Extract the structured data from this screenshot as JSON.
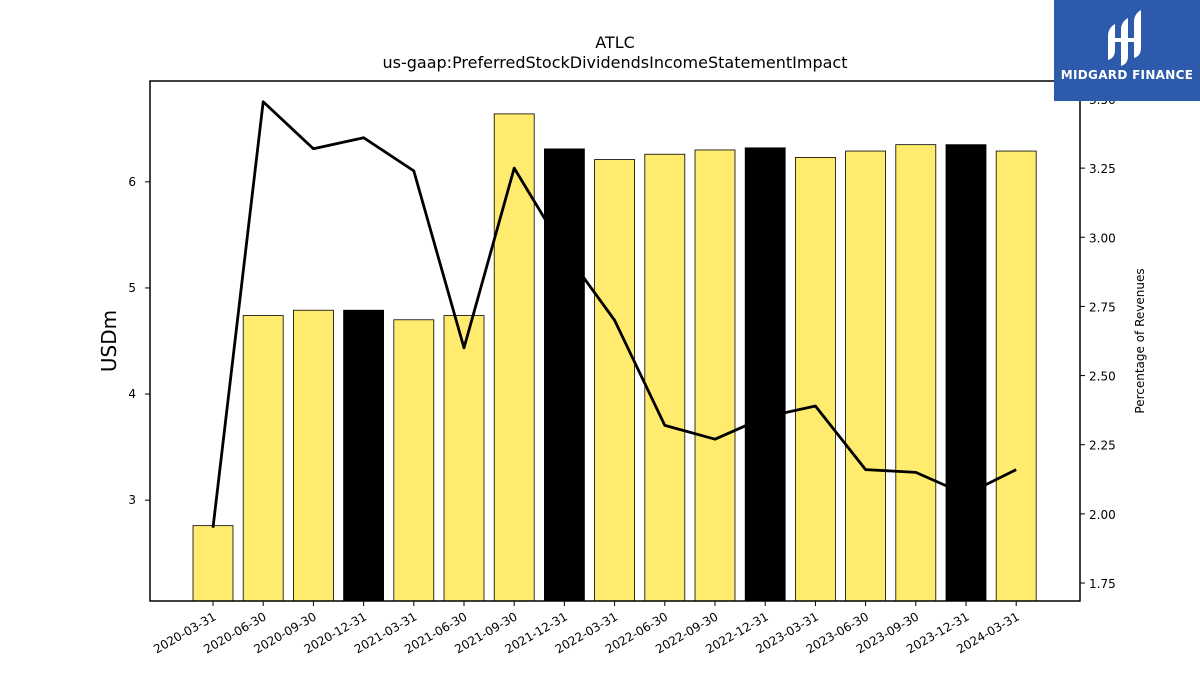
{
  "chart_data": {
    "type": "bar",
    "title": "ATLC",
    "subtitle": "us-gaap:PreferredStockDividendsIncomeStatementImpact",
    "ylabel": "USDm",
    "y2label": "Percentage of Revenues",
    "categories": [
      "2020-03-31",
      "2020-06-30",
      "2020-09-30",
      "2020-12-31",
      "2021-03-31",
      "2021-06-30",
      "2021-09-30",
      "2021-12-31",
      "2022-03-31",
      "2022-06-30",
      "2022-09-30",
      "2022-12-31",
      "2023-03-31",
      "2023-06-30",
      "2023-09-30",
      "2023-12-31",
      "2024-03-31"
    ],
    "series": [
      {
        "axis": "left",
        "kind": "bar",
        "values": [
          2.76,
          4.74,
          4.79,
          4.79,
          4.7,
          4.74,
          6.64,
          6.31,
          6.21,
          6.26,
          6.3,
          6.32,
          6.23,
          6.29,
          6.35,
          6.35,
          6.29
        ],
        "highlight": [
          false,
          false,
          false,
          true,
          false,
          false,
          false,
          true,
          false,
          false,
          false,
          true,
          false,
          false,
          false,
          true,
          false
        ]
      },
      {
        "axis": "right",
        "kind": "line",
        "values": [
          1.95,
          3.49,
          3.32,
          3.36,
          3.24,
          2.6,
          3.25,
          2.95,
          2.7,
          2.32,
          2.27,
          2.35,
          2.39,
          2.16,
          2.15,
          2.07,
          2.16
        ]
      }
    ],
    "ylim": [
      2.05,
      6.95
    ],
    "y2lim": [
      1.685,
      3.565
    ],
    "yticks": [
      3,
      4,
      5,
      6
    ],
    "y2ticks": [
      1.75,
      2.0,
      2.25,
      2.5,
      2.75,
      3.0,
      3.25,
      3.5
    ],
    "y2tick_labels": [
      "1.75",
      "2.00",
      "2.25",
      "2.50",
      "2.75",
      "3.00",
      "3.25",
      "3.50"
    ],
    "colors": {
      "bar": "#ffec6e",
      "bar_highlight": "#000000",
      "line": "#000000"
    },
    "grid": false
  },
  "logo": {
    "text": "MIDGARD FINANCE",
    "color": "#2e5aac"
  }
}
